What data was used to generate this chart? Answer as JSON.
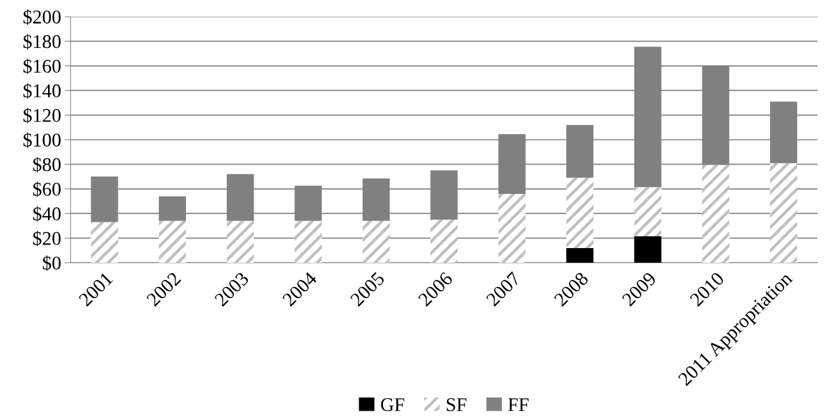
{
  "chart_data": {
    "type": "bar",
    "stacked": true,
    "categories": [
      "2001",
      "2002",
      "2003",
      "2004",
      "2005",
      "2006",
      "2007",
      "2008",
      "2009",
      "2010",
      "2011 Appropriation"
    ],
    "series": [
      {
        "name": "GF",
        "color": "#000000",
        "values": [
          0,
          0,
          0,
          0,
          0,
          0,
          0,
          12,
          21.5,
          0,
          0
        ]
      },
      {
        "name": "SF",
        "color": "#bfbfbf",
        "values": [
          33,
          34,
          34,
          34,
          34,
          35,
          56,
          57,
          40,
          79.5,
          81
        ]
      },
      {
        "name": "FF",
        "color": "#808080",
        "values": [
          37,
          20,
          38,
          28.5,
          34.5,
          40,
          48.5,
          43,
          114,
          81,
          50
        ]
      }
    ],
    "ylim": [
      0,
      200
    ],
    "yticks": [
      {
        "value": 0,
        "label": "$0"
      },
      {
        "value": 20,
        "label": "$20"
      },
      {
        "value": 40,
        "label": "$40"
      },
      {
        "value": 60,
        "label": "$60"
      },
      {
        "value": 80,
        "label": "$80"
      },
      {
        "value": 100,
        "label": "$100"
      },
      {
        "value": 120,
        "label": "$120"
      },
      {
        "value": 140,
        "label": "$140"
      },
      {
        "value": 160,
        "label": "$160"
      },
      {
        "value": 180,
        "label": "$180"
      },
      {
        "value": 200,
        "label": "$200"
      }
    ],
    "grid": "y",
    "legend": "bottom"
  }
}
